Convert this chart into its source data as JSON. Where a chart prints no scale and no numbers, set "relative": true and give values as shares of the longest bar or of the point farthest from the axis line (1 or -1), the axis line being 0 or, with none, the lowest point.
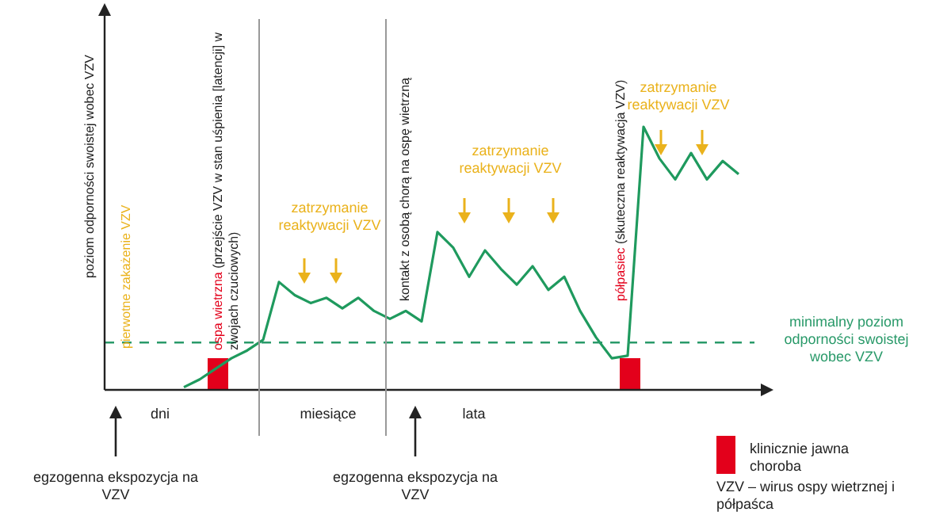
{
  "chart_data": {
    "type": "line",
    "relative": true,
    "ylabel": "poziom odporności swoistej wobec VZV",
    "categories": [
      null,
      null,
      null,
      null,
      null,
      null,
      null,
      null,
      null,
      null,
      null,
      null,
      null,
      null,
      null,
      null,
      null,
      null,
      null,
      null,
      null,
      null,
      null,
      null,
      null,
      null,
      null,
      null,
      null,
      null,
      null,
      null,
      null,
      null,
      null,
      null,
      null,
      null,
      null,
      null,
      null,
      null
    ],
    "series": [
      {
        "color": "#1f9a5e",
        "values": [
          null,
          null,
          null,
          null,
          null,
          0.01,
          0.04,
          0.08,
          0.12,
          0.15,
          0.19,
          0.41,
          0.36,
          0.33,
          0.35,
          0.31,
          0.35,
          0.3,
          0.27,
          0.3,
          0.26,
          0.6,
          0.54,
          0.43,
          0.53,
          0.46,
          0.4,
          0.47,
          0.38,
          0.43,
          0.3,
          0.2,
          0.12,
          0.13,
          1.0,
          0.88,
          0.8,
          0.9,
          0.8,
          0.87,
          0.82,
          null
        ]
      }
    ],
    "ref_lines": [
      {
        "axis": "y",
        "value": 0.18,
        "label": "minimalny poziom odporności swoistej wobec VZV",
        "color": "#2a9a6a",
        "line_style": "dashed"
      }
    ],
    "annotations": [
      "pierwotne zakażenie VZV",
      "ospa wietrzna",
      "(przejście VZV w stan uśpienia [latencji] w zwojach czuciowych)",
      "kontakt z osobą chorą na ospę wietrzną",
      "półpasiec",
      "(skuteczna reaktywacja VZV)",
      "zatrzymanie reaktywacji VZV",
      "zatrzymanie reaktywacji VZV",
      "zatrzymanie reaktywacji VZV",
      "dni",
      "miesiące",
      "lata",
      "egzogenna ekspozycja na VZV",
      "egzogenna ekspozycja na VZV",
      "klinicznie jawna choroba",
      "VZV – wirus ospy wietrznej i półpaśca"
    ]
  }
}
